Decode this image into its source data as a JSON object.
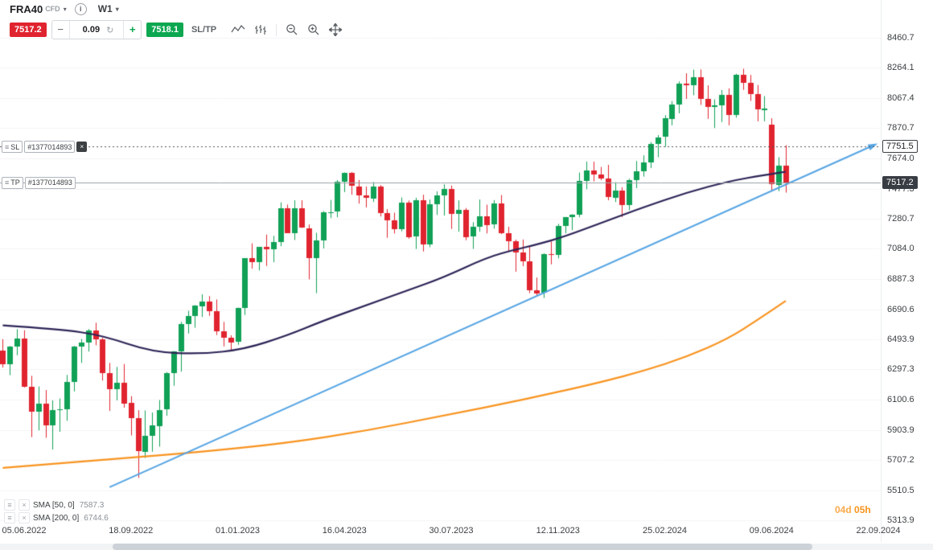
{
  "instrument": {
    "symbol": "FRA40",
    "type_label": "CFD",
    "timeframe": "W1"
  },
  "order_panel": {
    "sell_price": "7517.2",
    "quantity": "0.09",
    "buy_price": "7518.1",
    "sltp_label": "SL/TP",
    "minus_label": "−",
    "plus_label": "+"
  },
  "positions": {
    "sl": {
      "label": "SL",
      "id": "#1377014893",
      "price": "7751.5"
    },
    "tp": {
      "label": "TP",
      "id": "#1377014893",
      "price": "7517.2"
    }
  },
  "indicators": [
    {
      "name": "SMA [50, 0]",
      "value": "7587.3"
    },
    {
      "name": "SMA [200, 0]",
      "value": "6744.6"
    }
  ],
  "countdown": {
    "days": "04d",
    "hours": "05h"
  },
  "icons": {
    "chevron_down": "▾",
    "info": "i",
    "refresh": "↻",
    "drag_handle": "≡",
    "close": "×"
  },
  "chart_data": {
    "type": "candlestick",
    "symbol": "FRA40",
    "timeframe": "W1",
    "y_axis": {
      "ticks": [
        8460.7,
        8264.1,
        8067.4,
        7870.7,
        7674.0,
        7477.3,
        7280.7,
        7084.0,
        6887.3,
        6690.6,
        6493.9,
        6297.3,
        6100.6,
        5903.9,
        5707.2,
        5510.5,
        5313.9
      ]
    },
    "x_axis": {
      "labels": [
        "05.06.2022",
        "18.09.2022",
        "01.01.2023",
        "16.04.2023",
        "30.07.2023",
        "12.11.2023",
        "25.02.2024",
        "09.06.2024",
        "22.09.2024"
      ],
      "week_indices": [
        0,
        15,
        30,
        45,
        60,
        75,
        90,
        105,
        120
      ]
    },
    "first_week_index": -3,
    "candles": [
      [
        6420,
        6495,
        6310,
        6330
      ],
      [
        6330,
        6450,
        6260,
        6445
      ],
      [
        6445,
        6560,
        6390,
        6500
      ],
      [
        6500,
        6553,
        6180,
        6187
      ],
      [
        6187,
        6256,
        5856,
        6023
      ],
      [
        6023,
        6186,
        5900,
        6073
      ],
      [
        6073,
        6163,
        5852,
        5931
      ],
      [
        5931,
        6096,
        5775,
        6033
      ],
      [
        6033,
        6108,
        5891,
        6036
      ],
      [
        6036,
        6262,
        5963,
        6216
      ],
      [
        6216,
        6451,
        6154,
        6448
      ],
      [
        6448,
        6496,
        6340,
        6472
      ],
      [
        6472,
        6561,
        6414,
        6553
      ],
      [
        6553,
        6602,
        6455,
        6495
      ],
      [
        6495,
        6504,
        6225,
        6274
      ],
      [
        6274,
        6340,
        6027,
        6168
      ],
      [
        6168,
        6314,
        6096,
        6212
      ],
      [
        6212,
        6333,
        6048,
        6077
      ],
      [
        6077,
        6123,
        5867,
        5979
      ],
      [
        5979,
        6032,
        5590,
        5762
      ],
      [
        5762,
        6030,
        5720,
        5866
      ],
      [
        5866,
        6017,
        5761,
        5932
      ],
      [
        5932,
        6098,
        5794,
        6035
      ],
      [
        6035,
        6280,
        5995,
        6273
      ],
      [
        6273,
        6417,
        6191,
        6416
      ],
      [
        6416,
        6608,
        6283,
        6594
      ],
      [
        6594,
        6680,
        6532,
        6644
      ],
      [
        6644,
        6717,
        6570,
        6712
      ],
      [
        6712,
        6788,
        6640,
        6742
      ],
      [
        6742,
        6776,
        6647,
        6677
      ],
      [
        6677,
        6754,
        6522,
        6547
      ],
      [
        6547,
        6608,
        6448,
        6505
      ],
      [
        6505,
        6520,
        6423,
        6474
      ],
      [
        6474,
        6701,
        6458,
        6696
      ],
      [
        6696,
        7023,
        6653,
        7023
      ],
      [
        7023,
        7120,
        6955,
        6996
      ],
      [
        6996,
        7097,
        6943,
        7097
      ],
      [
        7097,
        7177,
        6972,
        7082
      ],
      [
        7082,
        7169,
        6997,
        7129
      ],
      [
        7129,
        7387,
        7101,
        7347
      ],
      [
        7347,
        7373,
        7187,
        7187
      ],
      [
        7187,
        7401,
        7142,
        7348
      ],
      [
        7348,
        7401,
        7220,
        7220
      ],
      [
        7220,
        7243,
        6885,
        7026
      ],
      [
        7026,
        7189,
        6795,
        7139
      ],
      [
        7139,
        7330,
        7087,
        7322
      ],
      [
        7322,
        7403,
        7285,
        7324
      ],
      [
        7324,
        7533,
        7290,
        7520
      ],
      [
        7520,
        7582,
        7454,
        7577
      ],
      [
        7577,
        7585,
        7437,
        7491
      ],
      [
        7491,
        7533,
        7379,
        7432
      ],
      [
        7432,
        7491,
        7354,
        7414
      ],
      [
        7414,
        7520,
        7390,
        7491
      ],
      [
        7491,
        7500,
        7295,
        7319
      ],
      [
        7319,
        7343,
        7156,
        7270
      ],
      [
        7270,
        7320,
        7184,
        7213
      ],
      [
        7213,
        7419,
        7198,
        7388
      ],
      [
        7388,
        7399,
        7150,
        7163
      ],
      [
        7163,
        7417,
        7083,
        7400
      ],
      [
        7400,
        7437,
        7067,
        7112
      ],
      [
        7112,
        7406,
        7095,
        7374
      ],
      [
        7374,
        7459,
        7305,
        7433
      ],
      [
        7433,
        7505,
        7301,
        7476
      ],
      [
        7476,
        7497,
        7214,
        7315
      ],
      [
        7315,
        7400,
        7196,
        7340
      ],
      [
        7340,
        7350,
        7140,
        7164
      ],
      [
        7164,
        7258,
        7084,
        7229
      ],
      [
        7229,
        7406,
        7196,
        7296
      ],
      [
        7296,
        7372,
        7185,
        7240
      ],
      [
        7240,
        7402,
        7216,
        7378
      ],
      [
        7378,
        7435,
        7180,
        7185
      ],
      [
        7185,
        7228,
        7066,
        7135
      ],
      [
        7135,
        7144,
        6935,
        7060
      ],
      [
        7060,
        7145,
        6971,
        7003
      ],
      [
        7003,
        7103,
        6795,
        6816
      ],
      [
        6816,
        6897,
        6773,
        6795
      ],
      [
        6795,
        7055,
        6764,
        7048
      ],
      [
        7048,
        7132,
        6983,
        7045
      ],
      [
        7045,
        7247,
        7022,
        7234
      ],
      [
        7234,
        7292,
        7186,
        7292
      ],
      [
        7292,
        7310,
        7206,
        7306
      ],
      [
        7306,
        7582,
        7290,
        7527
      ],
      [
        7527,
        7653,
        7473,
        7597
      ],
      [
        7597,
        7653,
        7524,
        7571
      ],
      [
        7571,
        7618,
        7532,
        7543
      ],
      [
        7543,
        7632,
        7401,
        7420
      ],
      [
        7420,
        7519,
        7389,
        7465
      ],
      [
        7465,
        7486,
        7291,
        7371
      ],
      [
        7371,
        7541,
        7336,
        7535
      ],
      [
        7535,
        7657,
        7480,
        7592
      ],
      [
        7592,
        7694,
        7555,
        7648
      ],
      [
        7648,
        7780,
        7611,
        7768
      ],
      [
        7768,
        7826,
        7682,
        7812
      ],
      [
        7812,
        7956,
        7750,
        7934
      ],
      [
        7934,
        8048,
        7890,
        8028
      ],
      [
        8028,
        8176,
        7968,
        8164
      ],
      [
        8164,
        8229,
        8062,
        8152
      ],
      [
        8152,
        8253,
        8086,
        8205
      ],
      [
        8205,
        8254,
        8023,
        8061
      ],
      [
        8061,
        8151,
        7932,
        8010
      ],
      [
        8010,
        8059,
        7872,
        8022
      ],
      [
        8022,
        8120,
        7911,
        8088
      ],
      [
        8088,
        8131,
        7890,
        7957
      ],
      [
        7957,
        8226,
        7940,
        8219
      ],
      [
        8219,
        8259,
        8121,
        8167
      ],
      [
        8167,
        8218,
        8049,
        8095
      ],
      [
        8095,
        8153,
        7916,
        7993
      ],
      [
        7993,
        8080,
        7916,
        8001
      ],
      [
        7893,
        7936,
        7465,
        7503
      ],
      [
        7503,
        7682,
        7460,
        7628
      ],
      [
        7628,
        7760,
        7451,
        7517.2
      ]
    ],
    "sma50": {
      "period": 50,
      "last_value": 7587.3,
      "anchors": [
        [
          -3,
          6585
        ],
        [
          5,
          6560
        ],
        [
          11,
          6520
        ],
        [
          18,
          6410
        ],
        [
          25,
          6398
        ],
        [
          31,
          6430
        ],
        [
          37,
          6520
        ],
        [
          42,
          6615
        ],
        [
          48,
          6715
        ],
        [
          54,
          6815
        ],
        [
          59,
          6900
        ],
        [
          65,
          7028
        ],
        [
          69,
          7080
        ],
        [
          72,
          7112
        ],
        [
          76,
          7165
        ],
        [
          82,
          7270
        ],
        [
          87,
          7355
        ],
        [
          93,
          7450
        ],
        [
          99,
          7525
        ],
        [
          104,
          7566
        ],
        [
          107,
          7587.3
        ]
      ]
    },
    "sma200": {
      "period": 200,
      "last_value": 6744.6,
      "anchors": [
        [
          -3,
          5655
        ],
        [
          14,
          5718
        ],
        [
          25,
          5760
        ],
        [
          37,
          5818
        ],
        [
          48,
          5897
        ],
        [
          59,
          5997
        ],
        [
          70,
          6098
        ],
        [
          81,
          6214
        ],
        [
          87,
          6288
        ],
        [
          93,
          6378
        ],
        [
          99,
          6500
        ],
        [
          103,
          6620
        ],
        [
          107,
          6744.6
        ]
      ]
    },
    "trendline": {
      "from_week": 12,
      "from_price": 5530,
      "to_week": 119.5,
      "to_price": 7763
    },
    "sl_price": 7751.5,
    "tp_price": 7517.2,
    "current_price": 7517.2,
    "colors": {
      "up": "#10a156",
      "down": "#e0242f",
      "sma50": "#2e2457",
      "sma200": "#f8931f",
      "trendline": "#55a4e3",
      "sl_line": "#50555b",
      "tp_line": "#9aa0a6",
      "grid": "#f4f5f7"
    }
  }
}
